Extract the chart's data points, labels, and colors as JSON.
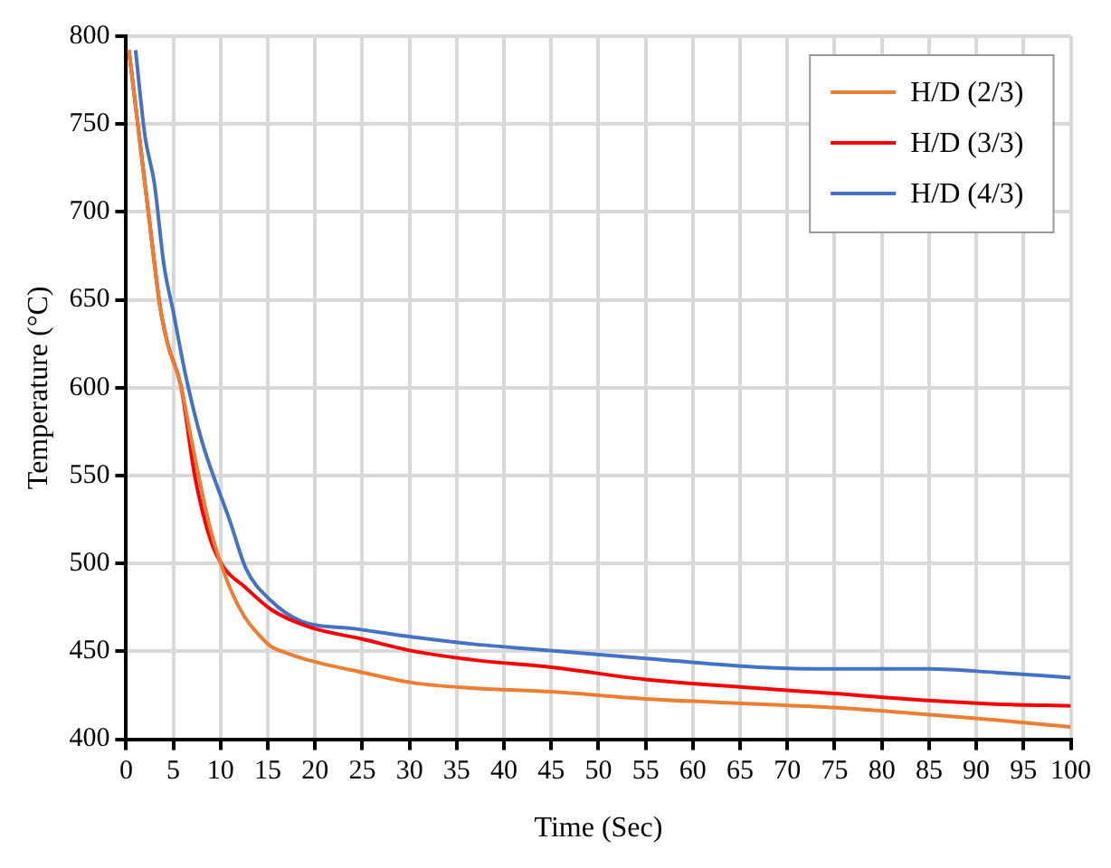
{
  "chart_data": {
    "type": "line",
    "xlabel": "Time (Sec)",
    "ylabel": "Temperature (°C)",
    "xlim": [
      0,
      100
    ],
    "xticks": [
      0,
      5,
      10,
      15,
      20,
      25,
      30,
      35,
      40,
      45,
      50,
      55,
      60,
      65,
      70,
      75,
      80,
      85,
      90,
      95,
      100
    ],
    "ylim": [
      400,
      800
    ],
    "yticks": [
      400,
      450,
      500,
      550,
      600,
      650,
      700,
      750,
      800
    ],
    "grid": true,
    "legend": "top right",
    "marker": "none",
    "line_style": "solid",
    "series": [
      {
        "name": "H/D (2/3)",
        "color": "#ed7d31",
        "x": [
          0.3,
          2.4,
          3.6,
          4.4,
          5.8,
          7,
          8.9,
          10.7,
          12.5,
          14.3,
          15.3,
          17,
          19.3,
          25,
          30.5,
          37,
          45,
          55,
          67,
          75,
          85,
          92,
          100
        ],
        "values": [
          792,
          698,
          646,
          625,
          601,
          568,
          520,
          490,
          470,
          458,
          453,
          449,
          445,
          438,
          432,
          429,
          427,
          423,
          420,
          418,
          414,
          411,
          407
        ]
      },
      {
        "name": "H/D (3/3)",
        "color": "#ff0000",
        "x": [
          0.3,
          2.4,
          3.6,
          4.4,
          5.8,
          7.3,
          8.9,
          10.3,
          12.5,
          15.3,
          19.3,
          25,
          30.5,
          37,
          45,
          55,
          67,
          75,
          85,
          92,
          100
        ],
        "values": [
          792,
          698,
          646,
          625,
          601,
          549,
          514,
          498,
          487,
          474,
          464,
          457,
          450,
          445,
          441,
          434,
          429,
          426,
          422,
          420,
          419
        ]
      },
      {
        "name": "H/D (4/3)",
        "color": "#4472c4",
        "x": [
          1,
          2,
          3,
          4,
          5,
          6.3,
          8,
          11,
          12.7,
          15.3,
          18.6,
          24,
          30.5,
          37,
          43.7,
          55,
          67,
          75,
          85,
          92,
          100
        ],
        "values": [
          792,
          743,
          716,
          670,
          643,
          607,
          570,
          524,
          497,
          479,
          467,
          463,
          458,
          454,
          451,
          446,
          441,
          440,
          440,
          438,
          435
        ]
      }
    ]
  }
}
